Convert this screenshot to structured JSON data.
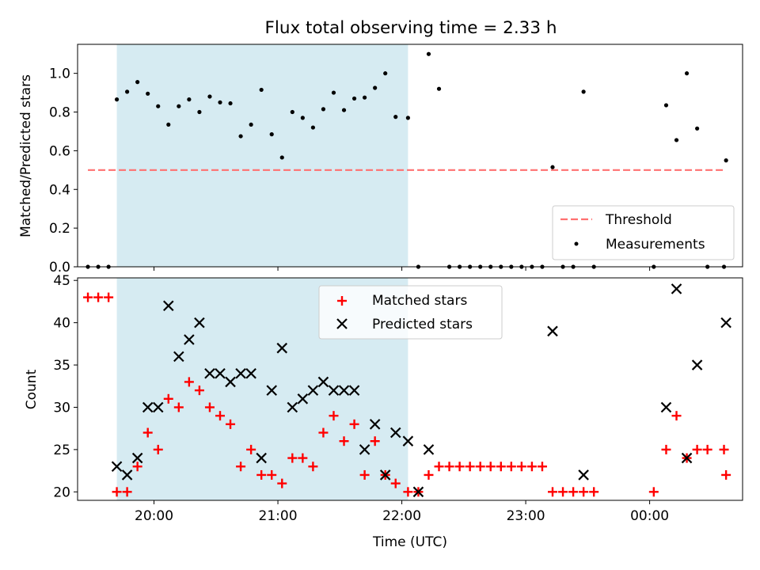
{
  "title": "Flux total observing time = 2.33 h",
  "chart_data": [
    {
      "type": "scatter",
      "ylabel": "Matched/Predicted stars",
      "ylim": [
        0,
        1.15
      ],
      "yticks": [
        "0.0",
        "0.2",
        "0.4",
        "0.6",
        "0.8",
        "1.0"
      ],
      "shaded_interval": [
        "19:42",
        "22:03"
      ],
      "threshold": {
        "name": "Threshold",
        "value": 0.5,
        "x_range": [
          "19:28",
          "00:36"
        ],
        "color": "#ff7070"
      },
      "legend": {
        "position": "lower-right",
        "entries": [
          "Threshold",
          "Measurements"
        ]
      },
      "series": [
        {
          "name": "Measurements",
          "color": "#000000",
          "points": [
            [
              "19:28",
              0
            ],
            [
              "19:33",
              0
            ],
            [
              "19:38",
              0
            ],
            [
              "19:42",
              0.865
            ],
            [
              "19:47",
              0.905
            ],
            [
              "19:52",
              0.955
            ],
            [
              "19:57",
              0.895
            ],
            [
              "20:02",
              0.83
            ],
            [
              "20:07",
              0.735
            ],
            [
              "20:12",
              0.83
            ],
            [
              "20:17",
              0.865
            ],
            [
              "20:22",
              0.8
            ],
            [
              "20:27",
              0.88
            ],
            [
              "20:32",
              0.85
            ],
            [
              "20:37",
              0.845
            ],
            [
              "20:42",
              0.675
            ],
            [
              "20:47",
              0.735
            ],
            [
              "20:52",
              0.915
            ],
            [
              "20:57",
              0.685
            ],
            [
              "21:02",
              0.565
            ],
            [
              "21:07",
              0.8
            ],
            [
              "21:12",
              0.77
            ],
            [
              "21:17",
              0.72
            ],
            [
              "21:22",
              0.815
            ],
            [
              "21:27",
              0.9
            ],
            [
              "21:32",
              0.81
            ],
            [
              "21:37",
              0.87
            ],
            [
              "21:42",
              0.875
            ],
            [
              "21:47",
              0.925
            ],
            [
              "21:52",
              1.0
            ],
            [
              "21:57",
              0.775
            ],
            [
              "22:03",
              0.77
            ],
            [
              "22:08",
              0
            ],
            [
              "22:13",
              1.1
            ],
            [
              "22:18",
              0.92
            ],
            [
              "22:23",
              0
            ],
            [
              "22:28",
              0
            ],
            [
              "22:33",
              0
            ],
            [
              "22:38",
              0
            ],
            [
              "22:43",
              0
            ],
            [
              "22:48",
              0
            ],
            [
              "22:53",
              0
            ],
            [
              "22:58",
              0
            ],
            [
              "23:03",
              0
            ],
            [
              "23:08",
              0
            ],
            [
              "23:13",
              0.515
            ],
            [
              "23:18",
              0
            ],
            [
              "23:23",
              0
            ],
            [
              "23:28",
              0.905
            ],
            [
              "23:33",
              0
            ],
            [
              "00:02",
              0
            ],
            [
              "00:08",
              0.835
            ],
            [
              "00:13",
              0.655
            ],
            [
              "00:18",
              1.0
            ],
            [
              "00:23",
              0.715
            ],
            [
              "00:28",
              0
            ],
            [
              "00:36",
              0
            ],
            [
              "00:37",
              0.55
            ]
          ]
        }
      ]
    },
    {
      "type": "scatter",
      "xlabel": "Time (UTC)",
      "ylabel": "Count",
      "ylim": [
        19,
        45.3
      ],
      "yticks": [
        "20",
        "25",
        "30",
        "35",
        "40",
        "45"
      ],
      "xticks": [
        "20:00",
        "21:00",
        "22:00",
        "23:00",
        "00:00"
      ],
      "shaded_interval": [
        "19:42",
        "22:03"
      ],
      "legend": {
        "position": "top-center",
        "entries": [
          "Matched stars",
          "Predicted stars"
        ]
      },
      "series": [
        {
          "name": "Matched stars",
          "marker": "+",
          "color": "#ff0000",
          "points": [
            [
              "19:28",
              43
            ],
            [
              "19:33",
              43
            ],
            [
              "19:38",
              43
            ],
            [
              "19:42",
              20
            ],
            [
              "19:47",
              20
            ],
            [
              "19:52",
              23
            ],
            [
              "19:57",
              27
            ],
            [
              "20:02",
              25
            ],
            [
              "20:07",
              31
            ],
            [
              "20:12",
              30
            ],
            [
              "20:17",
              33
            ],
            [
              "20:22",
              32
            ],
            [
              "20:27",
              30
            ],
            [
              "20:32",
              29
            ],
            [
              "20:37",
              28
            ],
            [
              "20:42",
              23
            ],
            [
              "20:47",
              25
            ],
            [
              "20:52",
              22
            ],
            [
              "20:57",
              22
            ],
            [
              "21:02",
              21
            ],
            [
              "21:07",
              24
            ],
            [
              "21:12",
              24
            ],
            [
              "21:17",
              23
            ],
            [
              "21:22",
              27
            ],
            [
              "21:27",
              29
            ],
            [
              "21:32",
              26
            ],
            [
              "21:37",
              28
            ],
            [
              "21:42",
              22
            ],
            [
              "21:47",
              26
            ],
            [
              "21:52",
              22
            ],
            [
              "21:57",
              21
            ],
            [
              "22:03",
              20
            ],
            [
              "22:08",
              20
            ],
            [
              "22:13",
              22
            ],
            [
              "22:18",
              23
            ],
            [
              "22:23",
              23
            ],
            [
              "22:28",
              23
            ],
            [
              "22:33",
              23
            ],
            [
              "22:38",
              23
            ],
            [
              "22:43",
              23
            ],
            [
              "22:48",
              23
            ],
            [
              "22:53",
              23
            ],
            [
              "22:58",
              23
            ],
            [
              "23:03",
              23
            ],
            [
              "23:08",
              23
            ],
            [
              "23:13",
              20
            ],
            [
              "23:18",
              20
            ],
            [
              "23:23",
              20
            ],
            [
              "23:28",
              20
            ],
            [
              "23:33",
              20
            ],
            [
              "00:02",
              20
            ],
            [
              "00:08",
              25
            ],
            [
              "00:13",
              29
            ],
            [
              "00:18",
              24
            ],
            [
              "00:23",
              25
            ],
            [
              "00:28",
              25
            ],
            [
              "00:36",
              25
            ],
            [
              "00:37",
              22
            ]
          ]
        },
        {
          "name": "Predicted stars",
          "marker": "x",
          "color": "#000000",
          "points": [
            [
              "19:42",
              23
            ],
            [
              "19:47",
              22
            ],
            [
              "19:52",
              24
            ],
            [
              "19:57",
              30
            ],
            [
              "20:02",
              30
            ],
            [
              "20:07",
              42
            ],
            [
              "20:12",
              36
            ],
            [
              "20:17",
              38
            ],
            [
              "20:22",
              40
            ],
            [
              "20:27",
              34
            ],
            [
              "20:32",
              34
            ],
            [
              "20:37",
              33
            ],
            [
              "20:42",
              34
            ],
            [
              "20:47",
              34
            ],
            [
              "20:52",
              24
            ],
            [
              "20:57",
              32
            ],
            [
              "21:02",
              37
            ],
            [
              "21:07",
              30
            ],
            [
              "21:12",
              31
            ],
            [
              "21:17",
              32
            ],
            [
              "21:22",
              33
            ],
            [
              "21:27",
              32
            ],
            [
              "21:32",
              32
            ],
            [
              "21:37",
              32
            ],
            [
              "21:42",
              25
            ],
            [
              "21:47",
              28
            ],
            [
              "21:52",
              22
            ],
            [
              "21:57",
              27
            ],
            [
              "22:03",
              26
            ],
            [
              "22:08",
              20
            ],
            [
              "22:13",
              25
            ],
            [
              "23:13",
              39
            ],
            [
              "23:28",
              22
            ],
            [
              "00:08",
              30
            ],
            [
              "00:13",
              44
            ],
            [
              "00:18",
              24
            ],
            [
              "00:23",
              35
            ],
            [
              "00:37",
              40
            ]
          ]
        }
      ]
    }
  ]
}
